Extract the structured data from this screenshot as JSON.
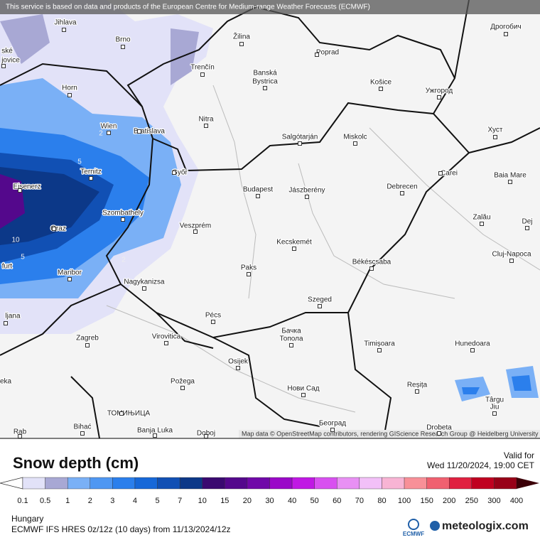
{
  "notice": "This service is based on data and products of the European Centre for Medium-range Weather Forecasts (ECMWF)",
  "attribution": "Map data © OpenStreetMap contributors, rendering GIScience Research Group @ Heidelberg University",
  "cities": [
    {
      "label": "Jihlava"
    },
    {
      "label": "Brno"
    },
    {
      "label": "Žilina"
    },
    {
      "label": "Дрогобич"
    },
    {
      "label": "ské"
    },
    {
      "label": "jovice"
    },
    {
      "label": "Poprad"
    },
    {
      "label": "Trenčín"
    },
    {
      "label": "Banská"
    },
    {
      "label": "Bystrica"
    },
    {
      "label": "Košice"
    },
    {
      "label": "Horn"
    },
    {
      "label": "Ужгород"
    },
    {
      "label": "Nitra"
    },
    {
      "label": "Miskolc"
    },
    {
      "label": "Salgótarján"
    },
    {
      "label": "Wien"
    },
    {
      "label": "Bratislava"
    },
    {
      "label": "Хуст"
    },
    {
      "label": "Győr"
    },
    {
      "label": "Ternitz"
    },
    {
      "label": "Carei"
    },
    {
      "label": "Baia Mare"
    },
    {
      "label": "Eisenerz"
    },
    {
      "label": "Budapest"
    },
    {
      "label": "Jászberény"
    },
    {
      "label": "Debrecen"
    },
    {
      "label": "Szombathely"
    },
    {
      "label": "Zalău"
    },
    {
      "label": "Veszprém"
    },
    {
      "label": "Graz"
    },
    {
      "label": "Dej"
    },
    {
      "label": "Kecskemét"
    },
    {
      "label": "Cluj-Napoca"
    },
    {
      "label": "furt"
    },
    {
      "label": "Paks"
    },
    {
      "label": "Békéscsaba"
    },
    {
      "label": "Maribor"
    },
    {
      "label": "Nagykanizsa"
    },
    {
      "label": "Szeged"
    },
    {
      "label": "Pécs"
    },
    {
      "label": "ljana"
    },
    {
      "label": "Бачка"
    },
    {
      "label": "Топола"
    },
    {
      "label": "Virovitica"
    },
    {
      "label": "Zagreb"
    },
    {
      "label": "Timișoara"
    },
    {
      "label": "Hunedoara"
    },
    {
      "label": "Osijek"
    },
    {
      "label": "Požega"
    },
    {
      "label": "Reșița"
    },
    {
      "label": "Нови Сад"
    },
    {
      "label": "eka"
    },
    {
      "label": "Târgu"
    },
    {
      "label": "Jiu"
    },
    {
      "label": "ТОМИЊИЦА"
    },
    {
      "label": "Bihać"
    },
    {
      "label": "Banja Luka"
    },
    {
      "label": "Doboj"
    },
    {
      "label": "Београд"
    },
    {
      "label": "Drobeta"
    },
    {
      "label": "Rab"
    }
  ],
  "contour_labels": [
    "5",
    "2",
    "10",
    "5",
    "2"
  ],
  "legend": {
    "title": "Snow depth (cm)",
    "valid_label": "Valid for",
    "valid_time": "Wed 11/20/2024, 19:00 CET",
    "steps": [
      "0.1",
      "0.5",
      "1",
      "2",
      "3",
      "4",
      "5",
      "7",
      "10",
      "15",
      "20",
      "30",
      "40",
      "50",
      "60",
      "70",
      "80",
      "100",
      "150",
      "200",
      "250",
      "300",
      "400"
    ],
    "under_color": "#ffffff",
    "colors": [
      "#e2e2f8",
      "#a8a8d4",
      "#7ab0f6",
      "#4f97f2",
      "#2b7fec",
      "#1768d8",
      "#1150b4",
      "#0c3888",
      "#3a0a70",
      "#54088c",
      "#7008a8",
      "#9a08c8",
      "#c018e4",
      "#d850f0",
      "#e890f4",
      "#f2c0f8",
      "#f8b4d4",
      "#f89098",
      "#f06070",
      "#e02040",
      "#c00020",
      "#980018"
    ],
    "over_color": "#3c0008"
  },
  "footer": {
    "region": "Hungary",
    "model": "ECMWF IFS HRES 0z/12z (10 days) from 11/13/2024/12z",
    "logo_small": "ECMWF",
    "logo_brand": "meteologix.com"
  }
}
